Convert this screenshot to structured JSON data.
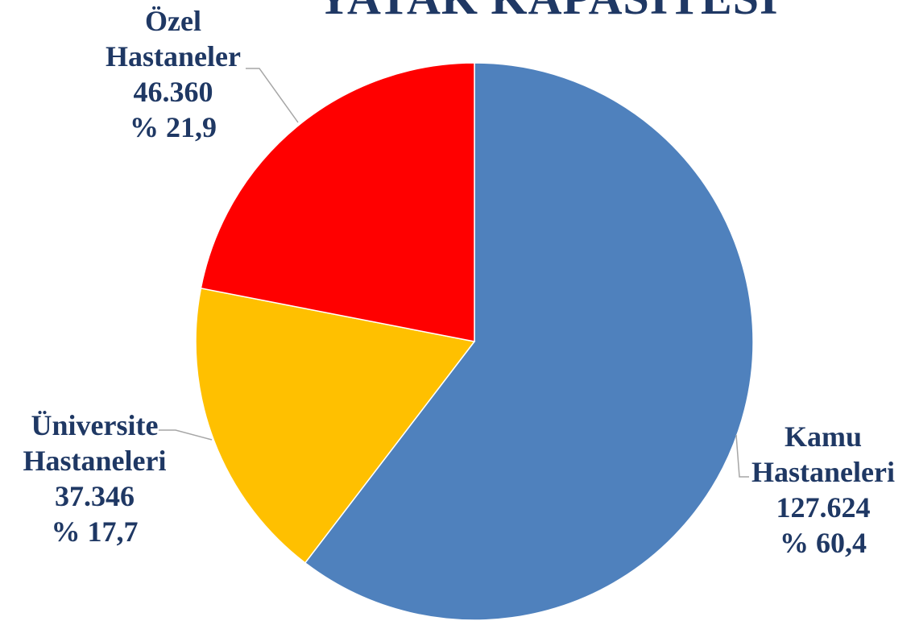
{
  "title": "YATAK KAPASİTESİ",
  "chart_data": {
    "type": "pie",
    "start_angle_deg": 0,
    "direction": "clockwise",
    "slices": [
      {
        "name": "Kamu Hastaneleri",
        "name_lines": [
          "Kamu",
          "Hastaneleri"
        ],
        "value": 127624,
        "value_label": "127.624",
        "percent": 60.4,
        "percent_label": "% 60,4",
        "color": "#4f81bd"
      },
      {
        "name": "Üniversite Hastaneleri",
        "name_lines": [
          "Üniversite",
          "Hastaneleri"
        ],
        "value": 37346,
        "value_label": "37.346",
        "percent": 17.7,
        "percent_label": "% 17,7",
        "color": "#ffc000"
      },
      {
        "name": "Özel Hastaneler",
        "name_lines": [
          "Özel",
          "Hastaneler"
        ],
        "value": 46360,
        "value_label": "46.360",
        "percent": 21.9,
        "percent_label": "% 21,9",
        "color": "#ff0000"
      }
    ]
  }
}
